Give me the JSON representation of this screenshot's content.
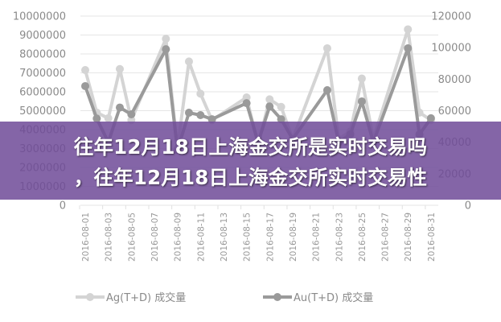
{
  "headline": {
    "line1": "往年12月18日上海金交所是实时交易吗",
    "line2": "，往年12月18日上海金交所实时交易性"
  },
  "chart_data": {
    "type": "line",
    "title": "",
    "x_tick_labels": [
      "2016-08-01",
      "2016-08-03",
      "2016-08-05",
      "2016-08-07",
      "2016-08-09",
      "2016-08-11",
      "2016-08-13",
      "2016-08-15",
      "2016-08-17",
      "2016-08-19",
      "2016-08-21",
      "2016-08-23",
      "2016-08-25",
      "2016-08-27",
      "2016-08-29",
      "2016-08-31"
    ],
    "y_left": {
      "ticks": [
        "0",
        "1000000",
        "2000000",
        "3000000",
        "4000000",
        "5000000",
        "6000000",
        "7000000",
        "8000000",
        "9000000",
        "10000000"
      ],
      "range": [
        0,
        10000000
      ]
    },
    "y_right": {
      "ticks": [
        "0",
        "20000",
        "40000",
        "60000",
        "80000",
        "100000",
        "120000"
      ],
      "range": [
        0,
        120000
      ]
    },
    "grid": true,
    "legend_position": "bottom",
    "x_dates": [
      1,
      2,
      3,
      4,
      5,
      8,
      9,
      10,
      11,
      12,
      15,
      16,
      17,
      18,
      19,
      22,
      23,
      24,
      25,
      26,
      29,
      30,
      31
    ],
    "series": [
      {
        "name": "Ag(T+D) 成交量",
        "axis": "left",
        "color": "#d4d4d4",
        "values": [
          7150000,
          4900000,
          4600000,
          7200000,
          4500000,
          8800000,
          3000000,
          7600000,
          5900000,
          4500000,
          5700000,
          3200000,
          5600000,
          5200000,
          3500000,
          8300000,
          3500000,
          3900000,
          6700000,
          3500000,
          9300000,
          4900000,
          4500000
        ]
      },
      {
        "name": "Au(T+D) 成交量",
        "axis": "right",
        "color": "#9a9a9a",
        "values": [
          75600,
          55000,
          40000,
          62000,
          57700,
          99000,
          35000,
          58700,
          57200,
          54600,
          64800,
          40000,
          62700,
          54600,
          42000,
          73000,
          40000,
          45000,
          65900,
          40000,
          99600,
          45000,
          55200
        ]
      }
    ]
  }
}
